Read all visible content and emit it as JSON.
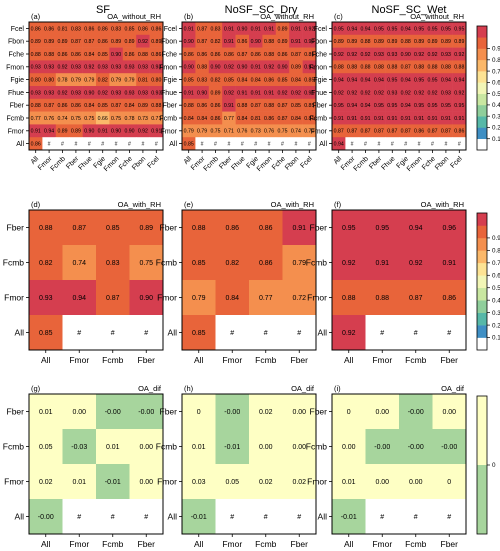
{
  "column_titles": [
    "SF",
    "NoSF_SC_Dry",
    "NoSF_SC_Wet"
  ],
  "colorbar_top": {
    "colors": [
      "#ffffff",
      "#3f8fc4",
      "#56b8a8",
      "#8fce9b",
      "#c9e7a1",
      "#f2f6b6",
      "#fde394",
      "#fbb86a",
      "#f48f4e",
      "#e8643a",
      "#d53e4f"
    ],
    "ticks": [
      "0.1",
      "0.2",
      "0.3",
      "0.4",
      "0.5",
      "0.6",
      "0.7",
      "0.8",
      "0.9"
    ]
  },
  "colorbar_dif": {
    "colors": [
      "#a7d59d",
      "#feffc4"
    ],
    "ticks": [
      "0"
    ]
  },
  "chart_data": [
    {
      "type": "heatmap",
      "panel": "(a)",
      "title": "OA_without_RH",
      "x": [
        "All",
        "Fmor",
        "Fcmb",
        "Fber",
        "Fhue",
        "Fgie",
        "Fmon",
        "Fche",
        "Fbon",
        "Fcel"
      ],
      "y": [
        "Fcel",
        "Fbon",
        "Fche",
        "Fmon",
        "Fgie",
        "Fhue",
        "Fber",
        "Fcmb",
        "Fmor",
        "All"
      ],
      "values": [
        [
          "0.86",
          "0.86",
          "0.81",
          "0.83",
          "0.86",
          "0.86",
          "0.83",
          "0.85",
          "0.86",
          "0.86"
        ],
        [
          "0.89",
          "0.89",
          "0.89",
          "0.87",
          "0.87",
          "0.86",
          "0.89",
          "0.89",
          "0.92",
          "0.89"
        ],
        [
          "0.88",
          "0.88",
          "0.86",
          "0.86",
          "0.84",
          "0.85",
          "0.90",
          "0.86",
          "0.88",
          "0.86"
        ],
        [
          "0.93",
          "0.93",
          "0.92",
          "0.93",
          "0.92",
          "0.93",
          "0.93",
          "0.93",
          "0.93",
          "0.93"
        ],
        [
          "0.80",
          "0.80",
          "0.78",
          "0.79",
          "0.79",
          "0.82",
          "0.79",
          "0.79",
          "0.81",
          "0.80"
        ],
        [
          "0.93",
          "0.93",
          "0.92",
          "0.93",
          "0.90",
          "0.92",
          "0.93",
          "0.93",
          "0.93",
          "0.93"
        ],
        [
          "0.88",
          "0.87",
          "0.86",
          "0.86",
          "0.84",
          "0.85",
          "0.87",
          "0.84",
          "0.89",
          "0.88"
        ],
        [
          "0.77",
          "0.76",
          "0.74",
          "0.75",
          "0.75",
          "0.66",
          "0.75",
          "0.78",
          "0.73",
          "0.71"
        ],
        [
          "0.91",
          "0.94",
          "0.89",
          "0.89",
          "0.90",
          "0.91",
          "0.90",
          "0.90",
          "0.92",
          "0.91"
        ],
        [
          "0.86",
          "#",
          "#",
          "#",
          "#",
          "#",
          "#",
          "#",
          "#",
          "#"
        ]
      ]
    },
    {
      "type": "heatmap",
      "panel": "(b)",
      "title": "OA_without_RH",
      "x": [
        "All",
        "Fmor",
        "Fcmb",
        "Fber",
        "Fhue",
        "Fgie",
        "Fmon",
        "Fche",
        "Fbon",
        "Fcel"
      ],
      "y": [
        "Fcel",
        "Fbon",
        "Fche",
        "Fmon",
        "Fgie",
        "Fhue",
        "Fber",
        "Fcmb",
        "Fmor",
        "All"
      ],
      "values": [
        [
          "0.91",
          "0.87",
          "0.83",
          "0.91",
          "0.90",
          "0.91",
          "0.91",
          "0.89",
          "0.91",
          "0.92"
        ],
        [
          "0.90",
          "0.87",
          "0.82",
          "0.91",
          "0.86",
          "0.90",
          "0.88",
          "0.89",
          "0.91",
          "0.90"
        ],
        [
          "0.86",
          "0.86",
          "0.86",
          "0.86",
          "0.87",
          "0.86",
          "0.88",
          "0.86",
          "0.87",
          "0.85"
        ],
        [
          "0.90",
          "0.88",
          "0.90",
          "0.92",
          "0.90",
          "0.91",
          "0.92",
          "0.90",
          "0.89",
          "0.91"
        ],
        [
          "0.85",
          "0.83",
          "0.82",
          "0.85",
          "0.84",
          "0.84",
          "0.86",
          "0.85",
          "0.84",
          "0.85"
        ],
        [
          "0.91",
          "0.90",
          "0.89",
          "0.92",
          "0.91",
          "0.91",
          "0.91",
          "0.92",
          "0.92",
          "0.91"
        ],
        [
          "0.88",
          "0.86",
          "0.86",
          "0.91",
          "0.88",
          "0.87",
          "0.88",
          "0.87",
          "0.85",
          "0.85"
        ],
        [
          "0.84",
          "0.84",
          "0.86",
          "0.77",
          "0.84",
          "0.81",
          "0.86",
          "0.87",
          "0.84",
          "0.81"
        ],
        [
          "0.79",
          "0.79",
          "0.75",
          "0.71",
          "0.76",
          "0.73",
          "0.76",
          "0.75",
          "0.74",
          "0.70"
        ],
        [
          "0.85",
          "#",
          "#",
          "#",
          "#",
          "#",
          "#",
          "#",
          "#",
          "#"
        ]
      ]
    },
    {
      "type": "heatmap",
      "panel": "(c)",
      "title": "OA_without_RH",
      "x": [
        "All",
        "Fmor",
        "Fcmb",
        "Fber",
        "Fhue",
        "Fgie",
        "Fmon",
        "Fche",
        "Fbon",
        "Fcel"
      ],
      "y": [
        "Fcel",
        "Fbon",
        "Fche",
        "Fmon",
        "Fgie",
        "Fhue",
        "Fber",
        "Fcmb",
        "Fmor",
        "All"
      ],
      "values": [
        [
          "0.95",
          "0.94",
          "0.94",
          "0.95",
          "0.95",
          "0.94",
          "0.95",
          "0.95",
          "0.95",
          "0.95"
        ],
        [
          "0.89",
          "0.89",
          "0.88",
          "0.89",
          "0.89",
          "0.88",
          "0.89",
          "0.89",
          "0.89",
          "0.89"
        ],
        [
          "0.92",
          "0.92",
          "0.92",
          "0.93",
          "0.93",
          "0.90",
          "0.92",
          "0.92",
          "0.93",
          "0.92"
        ],
        [
          "0.88",
          "0.88",
          "0.88",
          "0.88",
          "0.88",
          "0.87",
          "0.88",
          "0.88",
          "0.88",
          "0.88"
        ],
        [
          "0.94",
          "0.94",
          "0.94",
          "0.94",
          "0.95",
          "0.94",
          "0.95",
          "0.95",
          "0.94",
          "0.94"
        ],
        [
          "0.92",
          "0.92",
          "0.92",
          "0.92",
          "0.93",
          "0.92",
          "0.92",
          "0.92",
          "0.93",
          "0.92"
        ],
        [
          "0.95",
          "0.94",
          "0.94",
          "0.95",
          "0.95",
          "0.94",
          "0.95",
          "0.95",
          "0.95",
          "0.95"
        ],
        [
          "0.91",
          "0.91",
          "0.91",
          "0.91",
          "0.91",
          "0.91",
          "0.91",
          "0.91",
          "0.91",
          "0.91"
        ],
        [
          "0.87",
          "0.87",
          "0.87",
          "0.87",
          "0.87",
          "0.87",
          "0.86",
          "0.87",
          "0.87",
          "0.86"
        ],
        [
          "0.94",
          "#",
          "#",
          "#",
          "#",
          "#",
          "#",
          "#",
          "#",
          "#"
        ]
      ]
    },
    {
      "type": "heatmap",
      "panel": "(d)",
      "title": "OA_with_RH",
      "x": [
        "All",
        "Fmor",
        "Fcmb",
        "Fber"
      ],
      "y": [
        "Fber",
        "Fcmb",
        "Fmor",
        "All"
      ],
      "values": [
        [
          "0.88",
          "0.87",
          "0.85",
          "0.89"
        ],
        [
          "0.82",
          "0.74",
          "0.83",
          "0.75"
        ],
        [
          "0.93",
          "0.94",
          "0.87",
          "0.90"
        ],
        [
          "0.85",
          "#",
          "#",
          "#"
        ]
      ]
    },
    {
      "type": "heatmap",
      "panel": "(e)",
      "title": "OA_with_RH",
      "x": [
        "All",
        "Fmor",
        "Fcmb",
        "Fber"
      ],
      "y": [
        "Fber",
        "Fcmb",
        "Fmor",
        "All"
      ],
      "values": [
        [
          "0.88",
          "0.86",
          "0.86",
          "0.91"
        ],
        [
          "0.85",
          "0.82",
          "0.86",
          "0.79"
        ],
        [
          "0.79",
          "0.84",
          "0.77",
          "0.72"
        ],
        [
          "0.85",
          "#",
          "#",
          "#"
        ]
      ]
    },
    {
      "type": "heatmap",
      "panel": "(f)",
      "title": "OA_with_RH",
      "x": [
        "All",
        "Fmor",
        "Fcmb",
        "Fber"
      ],
      "y": [
        "Fber",
        "Fcmb",
        "Fmor",
        "All"
      ],
      "values": [
        [
          "0.95",
          "0.95",
          "0.94",
          "0.96"
        ],
        [
          "0.92",
          "0.91",
          "0.92",
          "0.91"
        ],
        [
          "0.88",
          "0.88",
          "0.87",
          "0.86"
        ],
        [
          "0.92",
          "#",
          "#",
          "#"
        ]
      ]
    },
    {
      "type": "heatmap",
      "panel": "(g)",
      "title": "OA_dif",
      "x": [
        "All",
        "Fmor",
        "Fcmb",
        "Fber"
      ],
      "y": [
        "Fber",
        "Fcmb",
        "Fmor",
        "All"
      ],
      "values": [
        [
          "0.01",
          "0.00",
          "-0.00",
          "-0.00"
        ],
        [
          "0.05",
          "-0.03",
          "0.01",
          "0.00"
        ],
        [
          "0.02",
          "0.01",
          "-0.01",
          "0.00"
        ],
        [
          "-0.00",
          "#",
          "#",
          "#"
        ]
      ]
    },
    {
      "type": "heatmap",
      "panel": "(h)",
      "title": "OA_dif",
      "x": [
        "All",
        "Fmor",
        "Fcmb",
        "Fber"
      ],
      "y": [
        "Fber",
        "Fcmb",
        "Fmor",
        "All"
      ],
      "values": [
        [
          "0",
          "-0.00",
          "0.02",
          "0.00"
        ],
        [
          "0.01",
          "-0.01",
          "0.00",
          "0.00"
        ],
        [
          "0.03",
          "0.05",
          "0.02",
          "0.02"
        ],
        [
          "-0.01",
          "#",
          "#",
          "#"
        ]
      ]
    },
    {
      "type": "heatmap",
      "panel": "(i)",
      "title": "OA_dif",
      "x": [
        "All",
        "Fmor",
        "Fcmb",
        "Fber"
      ],
      "y": [
        "Fber",
        "Fcmb",
        "Fmor",
        "All"
      ],
      "values": [
        [
          "0",
          "0.00",
          "-0.00",
          "0.00"
        ],
        [
          "0.00",
          "-0.00",
          "-0.00",
          "-0.00"
        ],
        [
          "0.01",
          "0.00",
          "0.00",
          "0"
        ],
        [
          "-0.01",
          "#",
          "#",
          "#"
        ]
      ]
    }
  ]
}
